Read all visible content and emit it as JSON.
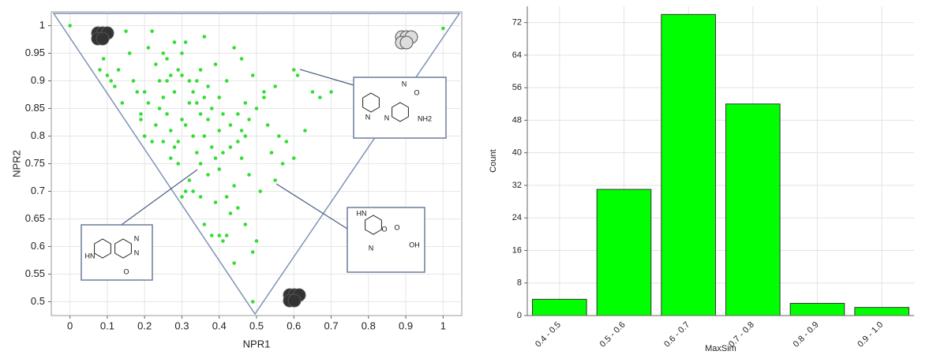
{
  "chart_data": [
    {
      "type": "scatter",
      "x_label": "NPR1",
      "y_label": "NPR2",
      "color": "#33dd33",
      "grid": true,
      "xlim": [
        -0.05,
        1.05
      ],
      "ylim": [
        0.475,
        1.025
      ],
      "xticks": [
        0,
        0.1,
        0.2,
        0.3,
        0.4,
        0.5,
        0.6,
        0.7,
        0.8,
        0.9,
        1
      ],
      "yticks": [
        0.5,
        0.55,
        0.6,
        0.65,
        0.7,
        0.75,
        0.8,
        0.85,
        0.9,
        0.95,
        1
      ],
      "x": [
        0.0,
        1.0,
        0.49,
        0.09,
        0.1,
        0.11,
        0.12,
        0.08,
        0.13,
        0.15,
        0.16,
        0.14,
        0.17,
        0.18,
        0.19,
        0.2,
        0.21,
        0.22,
        0.23,
        0.24,
        0.25,
        0.26,
        0.27,
        0.28,
        0.29,
        0.3,
        0.31,
        0.32,
        0.33,
        0.34,
        0.35,
        0.36,
        0.37,
        0.38,
        0.39,
        0.4,
        0.41,
        0.42,
        0.43,
        0.44,
        0.45,
        0.46,
        0.47,
        0.48,
        0.49,
        0.5,
        0.52,
        0.53,
        0.55,
        0.56,
        0.58,
        0.6,
        0.61,
        0.63,
        0.65,
        0.67,
        0.7,
        0.52,
        0.54,
        0.57,
        0.6,
        0.55,
        0.51,
        0.48,
        0.46,
        0.44,
        0.42,
        0.4,
        0.38,
        0.36,
        0.34,
        0.32,
        0.31,
        0.3,
        0.29,
        0.28,
        0.27,
        0.26,
        0.25,
        0.24,
        0.23,
        0.22,
        0.21,
        0.2,
        0.19,
        0.3,
        0.33,
        0.35,
        0.37,
        0.39,
        0.36,
        0.38,
        0.4,
        0.41,
        0.42,
        0.44,
        0.49,
        0.5,
        0.47,
        0.45,
        0.43,
        0.35,
        0.33,
        0.25,
        0.27,
        0.29,
        0.31,
        0.32,
        0.28,
        0.26,
        0.3,
        0.34,
        0.36,
        0.4,
        0.43,
        0.46,
        0.41,
        0.39,
        0.37,
        0.35,
        0.45,
        0.47
      ],
      "y": [
        1.0,
        0.995,
        0.5,
        0.94,
        0.91,
        0.9,
        0.89,
        0.92,
        0.92,
        0.99,
        0.95,
        0.86,
        0.9,
        0.88,
        0.84,
        0.8,
        0.96,
        0.99,
        0.93,
        0.9,
        0.95,
        0.94,
        0.91,
        0.97,
        0.92,
        0.95,
        0.97,
        0.9,
        0.88,
        0.86,
        0.92,
        0.98,
        0.89,
        0.85,
        0.93,
        0.87,
        0.84,
        0.9,
        0.82,
        0.96,
        0.79,
        0.94,
        0.86,
        0.83,
        0.91,
        0.85,
        0.88,
        0.82,
        0.89,
        0.8,
        0.79,
        0.92,
        0.91,
        0.81,
        0.88,
        0.87,
        0.88,
        0.87,
        0.77,
        0.75,
        0.76,
        0.72,
        0.7,
        0.73,
        0.76,
        0.71,
        0.69,
        0.74,
        0.78,
        0.8,
        0.77,
        0.72,
        0.7,
        0.69,
        0.75,
        0.78,
        0.81,
        0.84,
        0.87,
        0.85,
        0.82,
        0.79,
        0.86,
        0.88,
        0.83,
        0.83,
        0.8,
        0.75,
        0.73,
        0.68,
        0.64,
        0.62,
        0.62,
        0.61,
        0.62,
        0.57,
        0.59,
        0.61,
        0.64,
        0.67,
        0.66,
        0.69,
        0.7,
        0.79,
        0.76,
        0.79,
        0.82,
        0.86,
        0.88,
        0.9,
        0.91,
        0.9,
        0.87,
        0.81,
        0.78,
        0.81,
        0.77,
        0.76,
        0.83,
        0.84,
        0.84,
        0.8
      ],
      "annotations": [
        [
          "N",
          "N",
          "N",
          "O",
          "NH2"
        ],
        [
          "HN",
          "O",
          "N",
          "O",
          "OH"
        ],
        [
          "N",
          "N",
          "HN",
          "O"
        ]
      ]
    },
    {
      "type": "bar",
      "x_label": "MaxSim",
      "y_label": "Count",
      "color": "#00ff00",
      "grid": true,
      "categories": [
        "0.4 - 0.5",
        "0.5 - 0.6",
        "0.6 - 0.7",
        "0.7 - 0.8",
        "0.8 - 0.9",
        "0.9 - 1.0"
      ],
      "values": [
        4,
        31,
        74,
        52,
        3,
        2
      ],
      "ylim": [
        0,
        76
      ],
      "yticks": [
        0,
        8,
        16,
        24,
        32,
        40,
        48,
        56,
        64,
        72
      ]
    }
  ]
}
